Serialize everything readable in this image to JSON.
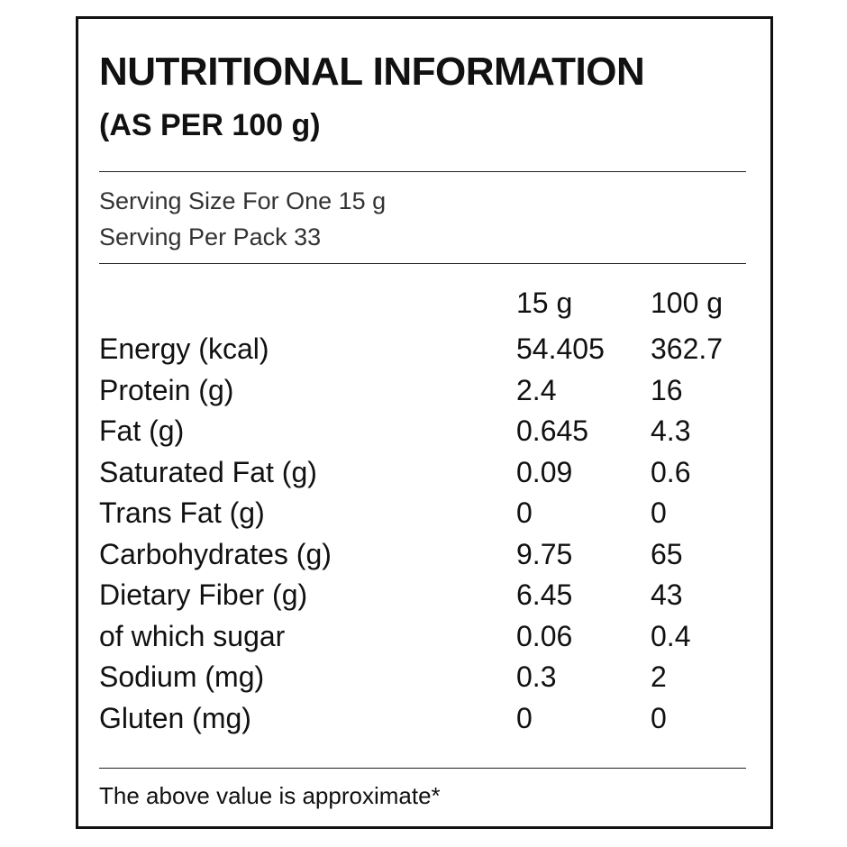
{
  "header": {
    "title": "NUTRITIONAL INFORMATION",
    "subtitle": "(AS PER 100 g)"
  },
  "serving": [
    "Serving Size For One 15 g",
    "Serving Per Pack 33"
  ],
  "table": {
    "columns": [
      "15 g",
      "100 g"
    ],
    "rows": [
      [
        "Energy (kcal)",
        "54.405",
        "362.7"
      ],
      [
        "Protein (g)",
        "2.4",
        "16"
      ],
      [
        "Fat (g)",
        "0.645",
        "4.3"
      ],
      [
        "Saturated Fat (g)",
        "0.09",
        "0.6"
      ],
      [
        "Trans Fat (g)",
        "0",
        "0"
      ],
      [
        "Carbohydrates (g)",
        "9.75",
        "65"
      ],
      [
        "Dietary Fiber (g)",
        "6.45",
        "43"
      ],
      [
        "of which sugar",
        "0.06",
        "0.4"
      ],
      [
        "Sodium (mg)",
        "0.3",
        "2"
      ],
      [
        "Gluten (mg)",
        "0",
        "0"
      ]
    ]
  },
  "footer": "The above value is approximate*"
}
